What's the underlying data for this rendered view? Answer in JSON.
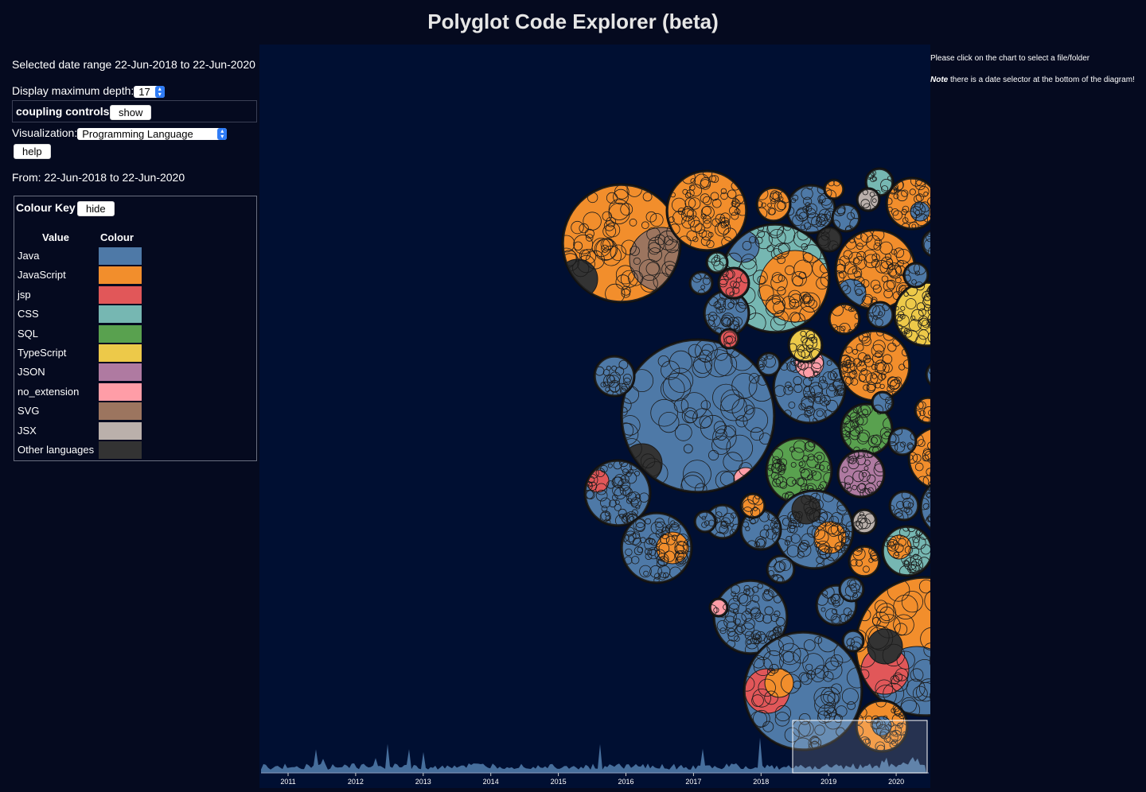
{
  "app": {
    "title": "Polyglot Code Explorer (beta)"
  },
  "sidebar": {
    "date_range_text": "Selected date range 22-Jun-2018 to 22-Jun-2020",
    "depth_label": "Display maximum depth:",
    "depth_value": "17",
    "coupling_label": "coupling controls",
    "coupling_button": "show",
    "visualization_label": "Visualization:",
    "visualization_value": "Programming Language",
    "help_button": "help",
    "from_text": "From: 22-Jun-2018 to 22-Jun-2020"
  },
  "colour_key": {
    "title": "Colour Key",
    "hide_button": "hide",
    "value_header": "Value",
    "colour_header": "Colour",
    "items": [
      {
        "label": "Java",
        "color": "#4e79a7"
      },
      {
        "label": "JavaScript",
        "color": "#f28e2c"
      },
      {
        "label": "jsp",
        "color": "#e15759"
      },
      {
        "label": "CSS",
        "color": "#76b7b2"
      },
      {
        "label": "SQL",
        "color": "#59a14f"
      },
      {
        "label": "TypeScript",
        "color": "#edc949"
      },
      {
        "label": "JSON",
        "color": "#af7aa1"
      },
      {
        "label": "no_extension",
        "color": "#ff9da7"
      },
      {
        "label": "SVG",
        "color": "#9c755f"
      },
      {
        "label": "JSX",
        "color": "#bab0ab"
      },
      {
        "label": "Other languages",
        "color": "#333333"
      }
    ]
  },
  "right_panel": {
    "instruction": "Please click on the chart to select a file/folder",
    "note_label": "Note",
    "note_text": " there is a date selector at the bottom of the diagram!"
  },
  "timeline": {
    "years": [
      "2011",
      "2012",
      "2013",
      "2014",
      "2015",
      "2016",
      "2017",
      "2018",
      "2019",
      "2020"
    ]
  }
}
